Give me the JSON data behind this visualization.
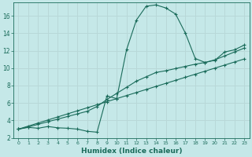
{
  "xlabel": "Humidex (Indice chaleur)",
  "background_color": "#c5e8e8",
  "line_color": "#1a6b5a",
  "grid_color": "#b8d8d8",
  "xlim": [
    -0.5,
    23.5
  ],
  "ylim": [
    2,
    17.5
  ],
  "xticks": [
    0,
    1,
    2,
    3,
    4,
    5,
    6,
    7,
    8,
    9,
    10,
    11,
    12,
    13,
    14,
    15,
    16,
    17,
    18,
    19,
    20,
    21,
    22,
    23
  ],
  "yticks": [
    2,
    4,
    6,
    8,
    10,
    12,
    14,
    16
  ],
  "curve1_x": [
    0,
    1,
    2,
    3,
    4,
    5,
    6,
    7,
    8,
    9,
    10,
    11,
    12,
    13,
    14,
    15,
    16,
    17,
    18,
    19,
    20,
    21,
    22,
    23
  ],
  "curve1_y": [
    3.0,
    3.2,
    3.1,
    3.3,
    3.15,
    3.1,
    3.0,
    2.75,
    2.65,
    6.8,
    6.5,
    12.1,
    15.5,
    17.1,
    17.25,
    16.9,
    16.2,
    14.0,
    11.1,
    10.65,
    10.9,
    11.85,
    12.1,
    12.65
  ],
  "curve2_x": [
    0,
    1,
    2,
    3,
    4,
    5,
    6,
    7,
    8,
    9,
    10,
    11,
    12,
    13,
    14,
    15,
    16,
    17,
    18,
    19,
    20,
    21,
    22,
    23
  ],
  "curve2_y": [
    3.0,
    3.35,
    3.7,
    4.05,
    4.4,
    4.75,
    5.1,
    5.45,
    5.8,
    6.15,
    6.5,
    6.85,
    7.2,
    7.55,
    7.9,
    8.25,
    8.6,
    8.95,
    9.3,
    9.65,
    10.0,
    10.35,
    10.7,
    11.05
  ],
  "curve3_x": [
    0,
    1,
    2,
    3,
    4,
    5,
    6,
    7,
    8,
    9,
    10,
    11,
    12,
    13,
    14,
    15,
    16,
    17,
    18,
    19,
    20,
    21,
    22,
    23
  ],
  "curve3_y": [
    3.0,
    3.25,
    3.55,
    3.85,
    4.15,
    4.45,
    4.75,
    5.05,
    5.6,
    6.4,
    7.1,
    7.8,
    8.5,
    9.0,
    9.5,
    9.7,
    9.95,
    10.2,
    10.45,
    10.65,
    10.95,
    11.4,
    11.85,
    12.3
  ]
}
